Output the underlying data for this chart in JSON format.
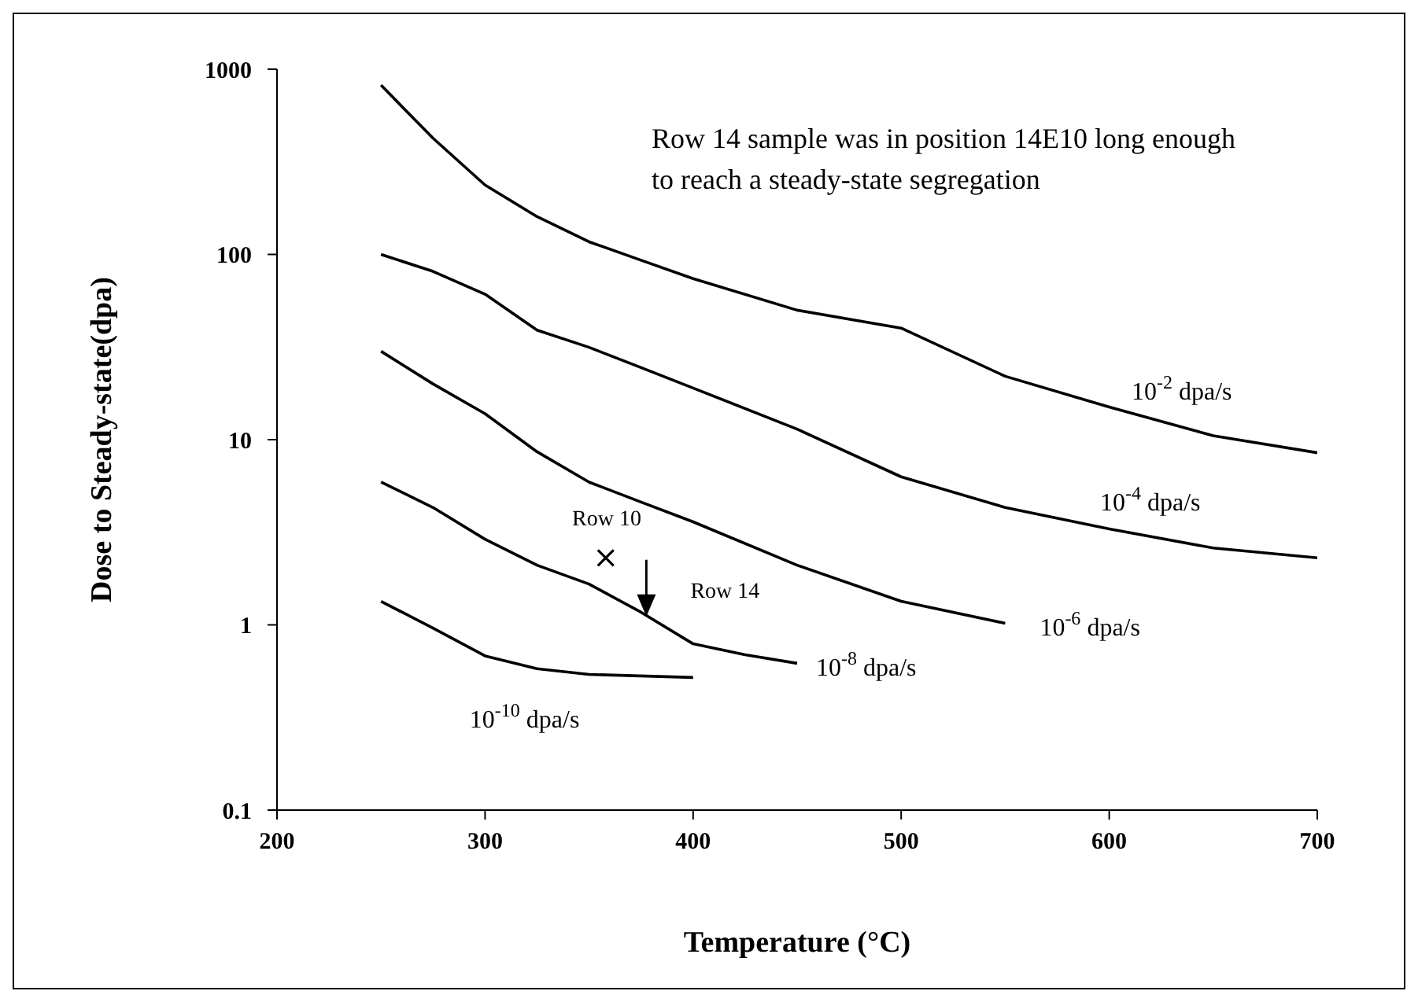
{
  "chart_data": {
    "type": "line",
    "xlabel": "Temperature (°C)",
    "ylabel": "Dose to Steady-state(dpa)",
    "xlim": [
      200,
      700
    ],
    "xticks": [
      200,
      300,
      400,
      500,
      600,
      700
    ],
    "ylim": [
      0.1,
      1000
    ],
    "yticks": [
      0.1,
      1,
      10,
      100,
      1000
    ],
    "log": "y",
    "marker": "none",
    "line_style": "solid",
    "series": [
      {
        "name": "10$^{-2}$ dpa/s",
        "color": "#000000",
        "x": [
          250,
          275,
          300,
          325,
          350,
          375,
          400,
          450,
          500,
          550,
          600,
          650,
          700
        ],
        "values": [
          820,
          424,
          237,
          160,
          117,
          93,
          74,
          50,
          40,
          22,
          15,
          10.5,
          8.5
        ]
      },
      {
        "name": "10$^{-4}$ dpa/s",
        "color": "#000000",
        "x": [
          250,
          275,
          300,
          325,
          350,
          375,
          400,
          450,
          500,
          550,
          600,
          650,
          700
        ],
        "values": [
          100,
          81,
          61,
          39,
          31.5,
          24.5,
          19,
          11.4,
          6.3,
          4.3,
          3.3,
          2.6,
          2.3
        ]
      },
      {
        "name": "10$^{-6}$ dpa/s",
        "color": "#000000",
        "x": [
          250,
          275,
          300,
          325,
          350,
          375,
          400,
          450,
          500,
          550
        ],
        "values": [
          30,
          20,
          13.8,
          8.6,
          5.9,
          4.6,
          3.6,
          2.1,
          1.34,
          1.02
        ]
      },
      {
        "name": "10$^{-8}$ dpa/s",
        "color": "#000000",
        "x": [
          250,
          275,
          300,
          325,
          350,
          375,
          400,
          425,
          450
        ],
        "values": [
          5.9,
          4.3,
          2.9,
          2.1,
          1.66,
          1.17,
          0.79,
          0.69,
          0.62
        ]
      },
      {
        "name": "10$^{-10}$ dpa/s",
        "color": "#000000",
        "x": [
          250,
          275,
          300,
          325,
          350,
          400
        ],
        "values": [
          1.34,
          0.96,
          0.68,
          0.58,
          0.54,
          0.52
        ]
      },
      {
        "type": "scatter",
        "marker": "cross",
        "color": "#000000",
        "x": [
          358
        ],
        "values": [
          2.3
        ]
      }
    ],
    "annotations": [
      "Row 14 sample was in position 14E10 long enough to reach a steady-state segregation",
      {
        "text": "Row 10",
        "x": 358,
        "y": 2.3
      },
      {
        "text": "Row 14",
        "x": 377,
        "y": 1.1
      }
    ]
  }
}
